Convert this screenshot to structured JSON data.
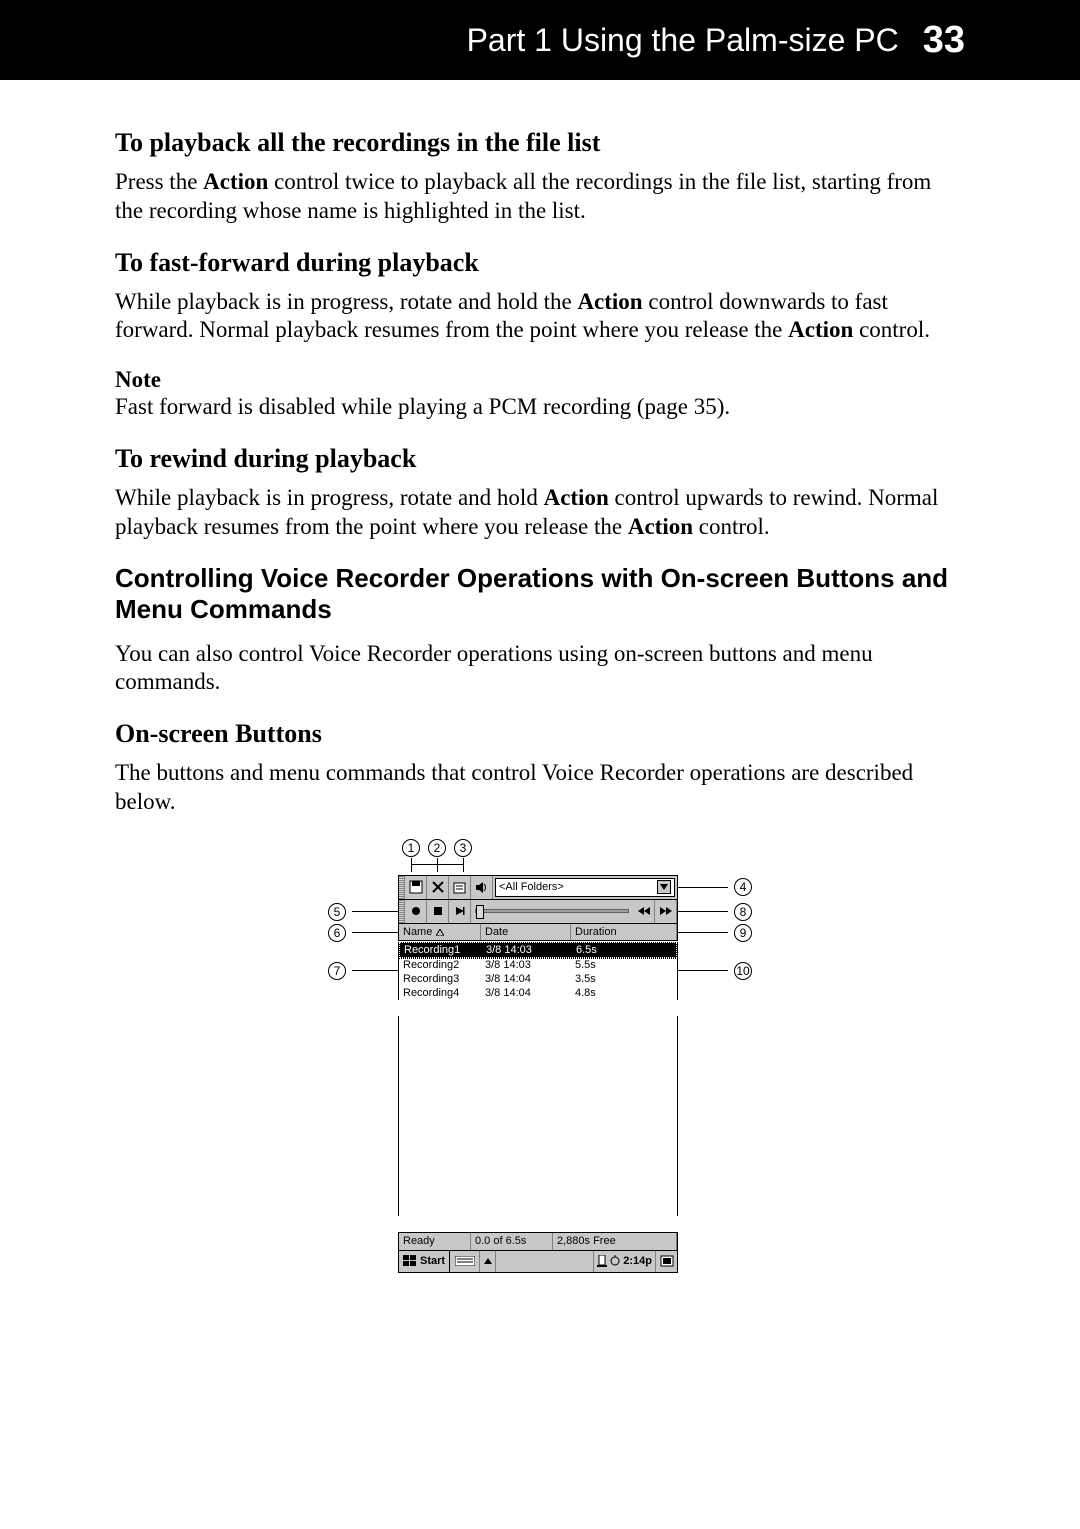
{
  "header": {
    "part": "Part 1  Using the Palm-size PC",
    "page": "33"
  },
  "sections": {
    "s1": {
      "title": "To playback all the recordings in the file list",
      "body_a": "Press the ",
      "body_b": "Action",
      "body_c": " control twice to playback all the recordings in the file list, starting from the recording whose name is highlighted in the list."
    },
    "s2": {
      "title": "To fast-forward during playback",
      "body_a": "While playback is in progress, rotate and hold the ",
      "body_b": "Action",
      "body_c": " control downwards to fast forward. Normal playback resumes from the point where you release the ",
      "body_d": "Action",
      "body_e": " control.",
      "note_label": "Note",
      "note_body": "Fast forward is disabled while playing a PCM recording (page 35)."
    },
    "s3": {
      "title": "To rewind during playback",
      "body_a": "While playback is in progress, rotate and hold ",
      "body_b": "Action",
      "body_c": " control upwards to rewind. Normal playback resumes from the point where you release the ",
      "body_d": "Action",
      "body_e": " control."
    },
    "s4": {
      "title": "Controlling Voice Recorder Operations with On-screen Buttons and Menu Commands",
      "body": "You can also control Voice Recorder operations using on-screen buttons and menu commands."
    },
    "s5": {
      "title": "On-screen Buttons",
      "body": "The buttons and menu commands that control Voice Recorder operations are described below."
    }
  },
  "callouts": {
    "c1": "1",
    "c2": "2",
    "c3": "3",
    "c4": "4",
    "c5": "5",
    "c6": "6",
    "c7": "7",
    "c8": "8",
    "c9": "9",
    "c10": "10"
  },
  "screenshot": {
    "folder_label": "<All Folders>",
    "columns": {
      "name": "Name",
      "date": "Date",
      "duration": "Duration"
    },
    "rows": [
      {
        "name": "Recording1",
        "date": "3/8 14:03",
        "dur": "6.5s",
        "selected": true
      },
      {
        "name": "Recording2",
        "date": "3/8 14:03",
        "dur": "5.5s",
        "selected": false
      },
      {
        "name": "Recording3",
        "date": "3/8 14:04",
        "dur": "3.5s",
        "selected": false
      },
      {
        "name": "Recording4",
        "date": "3/8 14:04",
        "dur": "4.8s",
        "selected": false
      }
    ],
    "status": {
      "state": "Ready",
      "pos": "0.0 of 6.5s",
      "free": "2,880s Free"
    },
    "taskbar": {
      "start": "Start",
      "clock": "2:14p"
    }
  }
}
